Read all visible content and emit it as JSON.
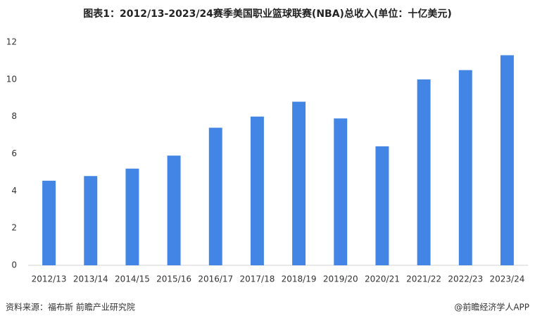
{
  "chart_data": {
    "type": "bar",
    "title": "图表1：2012/13-2023/24赛季美国职业篮球联赛(NBA)总收入(单位：十亿美元)",
    "categories": [
      "2012/13",
      "2013/14",
      "2014/15",
      "2015/16",
      "2016/17",
      "2017/18",
      "2018/19",
      "2019/20",
      "2020/21",
      "2021/22",
      "2022/23",
      "2023/24"
    ],
    "values": [
      4.55,
      4.8,
      5.2,
      5.9,
      7.4,
      8.0,
      8.8,
      7.9,
      6.4,
      10.0,
      10.5,
      11.3
    ],
    "color": "#4285e4",
    "ylim": [
      0,
      12
    ],
    "yticks": [
      0,
      2,
      4,
      6,
      8,
      10,
      12
    ],
    "grid": false,
    "source": "资料来源：福布斯 前瞻产业研究院",
    "credit": "@前瞻经济学人APP"
  }
}
